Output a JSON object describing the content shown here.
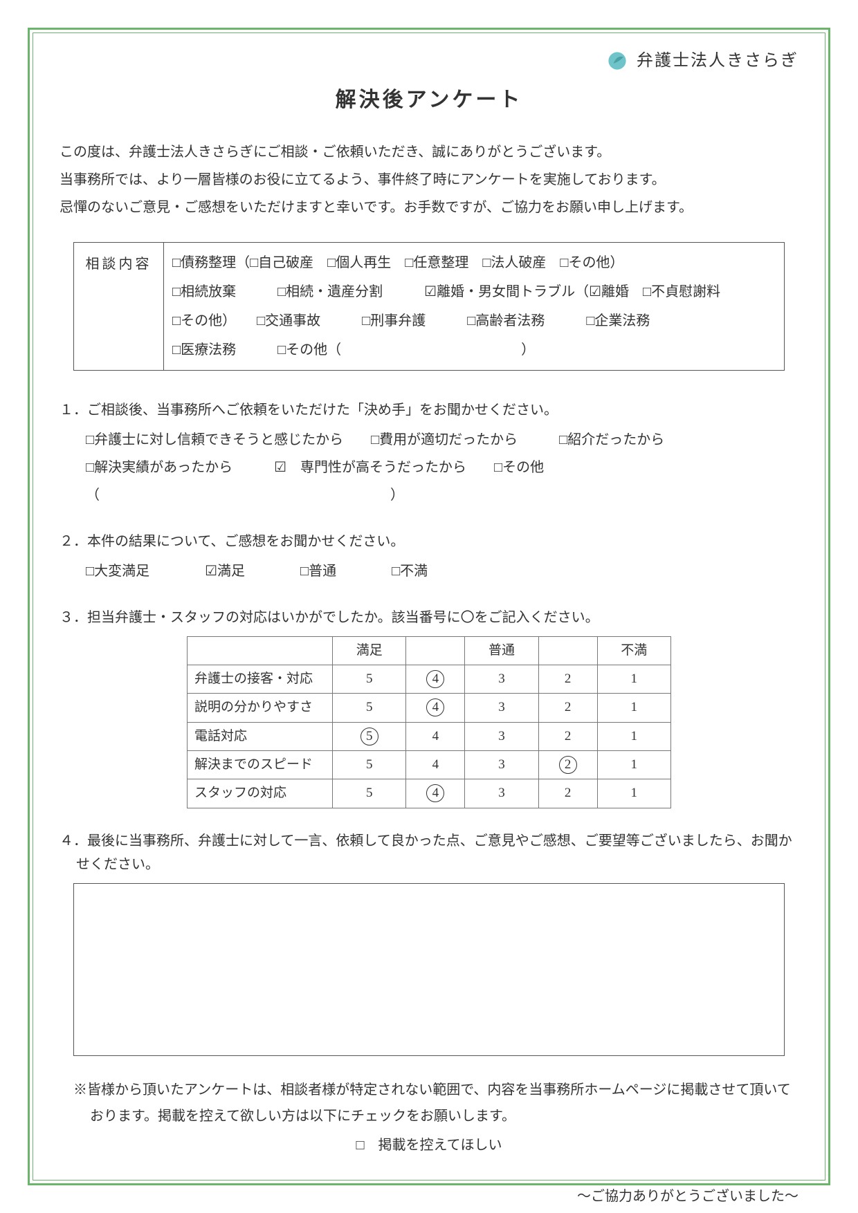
{
  "logo": {
    "name": "弁護士法人きさらぎ",
    "sub": ""
  },
  "title": "解決後アンケート",
  "intro": [
    "この度は、弁護士法人きさらぎにご相談・ご依頼いただき、誠にありがとうございます。",
    "当事務所では、より一層皆様のお役に立てるよう、事件終了時にアンケートを実施しております。",
    "忌憚のないご意見・ご感想をいただけますと幸いです。お手数ですが、ご協力をお願い申し上げます。"
  ],
  "consult": {
    "label": "相談内容",
    "line1": "□債務整理（□自己破産　□個人再生　□任意整理　□法人破産　□その他）",
    "line2": "□相続放棄　　　□相続・遺産分割　　　☑離婚・男女間トラブル（☑離婚　□不貞慰謝料",
    "line3": "□その他）　　□交通事故　　　□刑事弁護　　　□高齢者法務　　　□企業法務",
    "line4": "□医療法務　　　□その他（　　　　　　　　　　　　　）"
  },
  "q1": {
    "text": "１．ご相談後、当事務所へご依頼をいただけた「決め手」をお聞かせください。",
    "line1": "□弁護士に対し信頼できそうと感じたから　　□費用が適切だったから　　　□紹介だったから",
    "line2": "□解決実績があったから　　　☑　専門性が高そうだったから　　□その他（　　　　　　　　　　　　　　　　　　　　　）"
  },
  "q2": {
    "text": "２．本件の結果について、ご感想をお聞かせください。",
    "opts": "□大変満足　　　　☑満足　　　　□普通　　　　□不満"
  },
  "q3": {
    "text": "３．担当弁護士・スタッフの対応はいかがでしたか。該当番号に〇をご記入ください。",
    "headers": [
      "",
      "満足",
      "",
      "普通",
      "",
      "不満"
    ],
    "rows": [
      {
        "label": "弁護士の接客・対応",
        "vals": [
          5,
          4,
          3,
          2,
          1
        ],
        "circled": 4
      },
      {
        "label": "説明の分かりやすさ",
        "vals": [
          5,
          4,
          3,
          2,
          1
        ],
        "circled": 4
      },
      {
        "label": "電話対応",
        "vals": [
          5,
          4,
          3,
          2,
          1
        ],
        "circled": 5
      },
      {
        "label": "解決までのスピード",
        "vals": [
          5,
          4,
          3,
          2,
          1
        ],
        "circled": 2
      },
      {
        "label": "スタッフの対応",
        "vals": [
          5,
          4,
          3,
          2,
          1
        ],
        "circled": 4
      }
    ]
  },
  "q4": {
    "text": "４．最後に当事務所、弁護士に対して一言、依頼して良かった点、ご意見やご感想、ご要望等ございましたら、お聞かせください。"
  },
  "note": "※皆様から頂いたアンケートは、相談者様が特定されない範囲で、内容を当事務所ホームページに掲載させて頂いております。掲載を控えて欲しい方は以下にチェックをお願いします。",
  "optout": "□　掲載を控えてほしい",
  "thanks": "～ご協力ありがとうございました～",
  "colors": {
    "border": "#6ab56a",
    "text": "#333333"
  }
}
